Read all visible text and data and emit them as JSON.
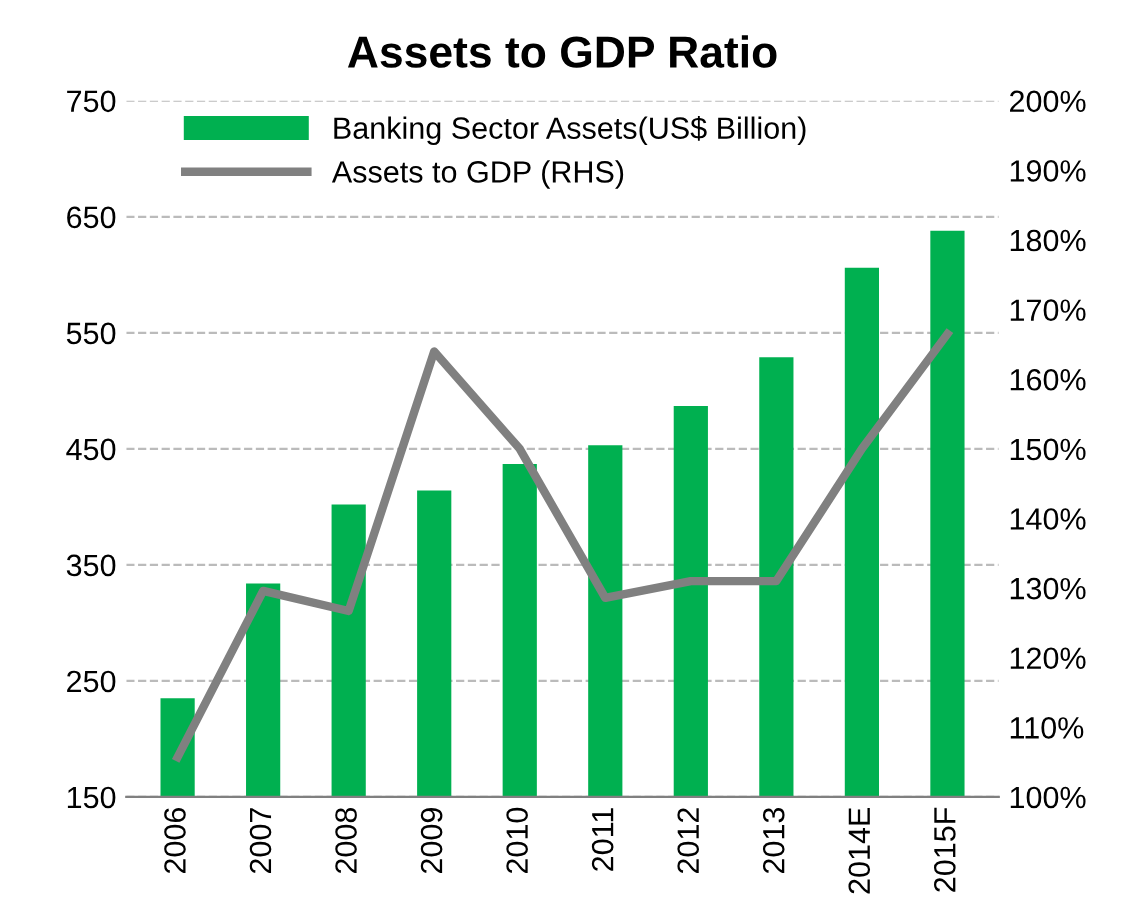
{
  "chart_data": {
    "type": "bar",
    "title": "Assets to GDP Ratio",
    "categories": [
      "2006",
      "2007",
      "2008",
      "2009",
      "2010",
      "2011",
      "2012",
      "2013",
      "2014E",
      "2015F"
    ],
    "series": [
      {
        "name": "Banking Sector Assets(US$ Billion)",
        "color": "#00b050",
        "values": [
          235,
          334,
          402,
          414,
          437,
          453,
          487,
          529,
          606,
          638
        ]
      },
      {
        "name": "Assets to GDP (RHS)",
        "type": "line",
        "axis": "y2",
        "color": "#808080",
        "values": [
          105.7,
          129.6,
          126.7,
          164,
          150,
          128.6,
          131,
          131,
          150,
          166.5
        ]
      }
    ],
    "ylim": [
      150,
      750
    ],
    "yticks": [
      150,
      250,
      350,
      450,
      550,
      650,
      750
    ],
    "y2lim": [
      100,
      200
    ],
    "y2ticks": [
      {
        "value": 100,
        "label": "100%"
      },
      {
        "value": 110,
        "label": "110%"
      },
      {
        "value": 120,
        "label": "120%"
      },
      {
        "value": 130,
        "label": "130%"
      },
      {
        "value": 140,
        "label": "140%"
      },
      {
        "value": 150,
        "label": "150%"
      },
      {
        "value": 160,
        "label": "160%"
      },
      {
        "value": 170,
        "label": "170%"
      },
      {
        "value": 180,
        "label": "180%"
      },
      {
        "value": 190,
        "label": "190%"
      },
      {
        "value": 200,
        "label": "200%"
      }
    ],
    "grid": "y",
    "legend": "top left",
    "line_style": "solid",
    "marker": "none"
  }
}
